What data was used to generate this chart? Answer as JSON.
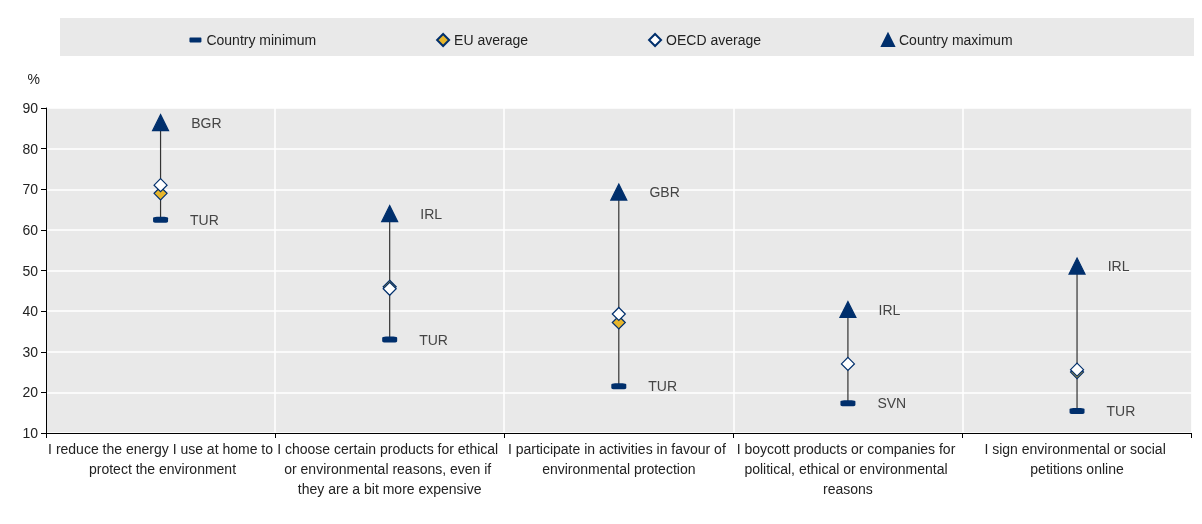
{
  "chart_data": {
    "type": "scatter",
    "ylabel": "%",
    "categories": [
      "I reduce the energy I use at home to protect the environment",
      "I choose certain products for ethical or environmental reasons, even if they are a bit more expensive",
      "I participate in activities in favour of environmental protection",
      "I boycott products or companies for political, ethical or environmental reasons",
      "I sign environmental or social petitions online"
    ],
    "series": [
      {
        "name": "Country minimum",
        "color": "#002f6c",
        "values": [
          62.5,
          33,
          21.5,
          17.3,
          15.4
        ],
        "value_labels": [
          "TUR",
          "TUR",
          "TUR",
          "SVN",
          "TUR"
        ]
      },
      {
        "name": "EU average",
        "color": "#e6b52b",
        "marker": "diamond",
        "values": [
          69,
          46,
          37.2,
          null,
          25
        ]
      },
      {
        "name": "OECD average",
        "color": "#ffffff",
        "marker": "diamond",
        "values": [
          71,
          45.5,
          39.3,
          27,
          25.6
        ]
      },
      {
        "name": "Country maximum",
        "color": "#002f6c",
        "marker": "triangle",
        "values": [
          86.4,
          64,
          69.3,
          40.4,
          51.1
        ],
        "value_labels": [
          "BGR",
          "IRL",
          "GBR",
          "IRL",
          "IRL"
        ]
      }
    ],
    "ylim": [
      10,
      90
    ],
    "yticks": [
      10,
      20,
      30,
      40,
      50,
      60,
      70,
      80,
      90
    ],
    "grid": true,
    "legend": "top"
  }
}
